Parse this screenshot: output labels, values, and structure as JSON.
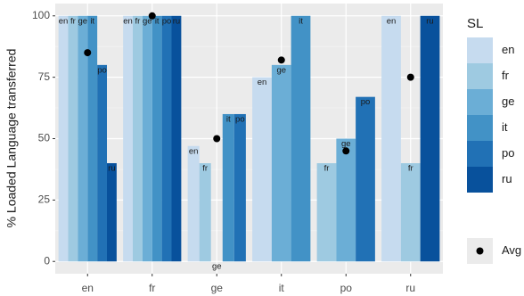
{
  "chart_data": {
    "type": "bar",
    "y_label": "% Loaded Language transferred",
    "legend_title": "SL",
    "categories": [
      "en",
      "fr",
      "ge",
      "it",
      "po",
      "ru"
    ],
    "series": [
      {
        "name": "en",
        "color": "#c6dbef",
        "values": [
          100,
          100,
          47,
          75,
          null,
          100
        ]
      },
      {
        "name": "fr",
        "color": "#9ecae1",
        "values": [
          100,
          100,
          40,
          null,
          40,
          40
        ]
      },
      {
        "name": "ge",
        "color": "#6baed6",
        "values": [
          100,
          100,
          0,
          80,
          50,
          null
        ]
      },
      {
        "name": "it",
        "color": "#4292c6",
        "values": [
          100,
          100,
          60,
          100,
          null,
          null
        ]
      },
      {
        "name": "po",
        "color": "#2171b5",
        "values": [
          80,
          100,
          60,
          null,
          67,
          null
        ]
      },
      {
        "name": "ru",
        "color": "#08519c",
        "values": [
          40,
          100,
          null,
          null,
          null,
          100
        ]
      }
    ],
    "avg": {
      "name": "Avg",
      "color": "#000000",
      "values": [
        85,
        100,
        50,
        82,
        45,
        75
      ]
    },
    "ylim": [
      -5,
      105
    ],
    "yticks": [
      0,
      25,
      50,
      75,
      100
    ],
    "grid": true
  }
}
